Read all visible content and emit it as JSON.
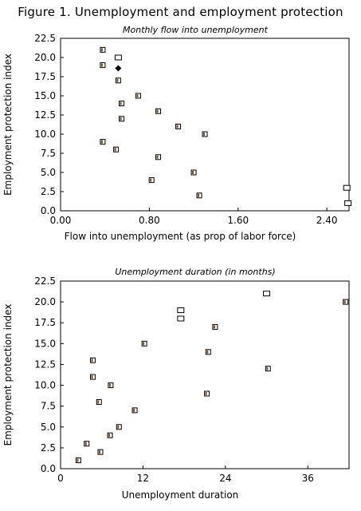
{
  "figure_title": "Figure 1. Unemployment and employment protection",
  "chart_data": [
    {
      "type": "scatter",
      "title": "Monthly flow into unemployment",
      "xlabel": "Flow into unemployment (as prop of labor force)",
      "ylabel": "Employment protection index",
      "xlim": [
        0,
        2.6
      ],
      "ylim": [
        0,
        22.5
      ],
      "xticks": [
        "0.00",
        "0.80",
        "1.60",
        "2.40"
      ],
      "yticks": [
        "0.0",
        "2.5",
        "5.0",
        "7.5",
        "10.0",
        "12.5",
        "15.0",
        "17.5",
        "20.0",
        "22.5"
      ],
      "grid": false,
      "points": [
        {
          "x": 0.38,
          "y": 21,
          "marker": "square-filled"
        },
        {
          "x": 0.52,
          "y": 20,
          "marker": "square-hollow"
        },
        {
          "x": 0.38,
          "y": 19,
          "marker": "square-filled"
        },
        {
          "x": 0.52,
          "y": 18.6,
          "marker": "diamond"
        },
        {
          "x": 0.52,
          "y": 17,
          "marker": "square-filled"
        },
        {
          "x": 0.7,
          "y": 15,
          "marker": "square-filled"
        },
        {
          "x": 0.55,
          "y": 14,
          "marker": "square-filled"
        },
        {
          "x": 0.88,
          "y": 13,
          "marker": "square-filled"
        },
        {
          "x": 0.55,
          "y": 12,
          "marker": "square-filled"
        },
        {
          "x": 1.06,
          "y": 11,
          "marker": "square-filled"
        },
        {
          "x": 1.3,
          "y": 10,
          "marker": "square-filled"
        },
        {
          "x": 0.38,
          "y": 9,
          "marker": "square-filled"
        },
        {
          "x": 0.5,
          "y": 8,
          "marker": "square-filled"
        },
        {
          "x": 0.88,
          "y": 7,
          "marker": "square-filled"
        },
        {
          "x": 1.2,
          "y": 5,
          "marker": "square-filled"
        },
        {
          "x": 0.82,
          "y": 4,
          "marker": "square-filled"
        },
        {
          "x": 1.25,
          "y": 2,
          "marker": "square-filled"
        },
        {
          "x": 2.58,
          "y": 3,
          "marker": "square-hollow"
        },
        {
          "x": 2.59,
          "y": 1,
          "marker": "square-hollow"
        }
      ]
    },
    {
      "type": "scatter",
      "title": "Unemployment duration (in months)",
      "xlabel": "Unemployment duration",
      "ylabel": "Employment protection index",
      "xlim": [
        0,
        42
      ],
      "ylim": [
        0,
        22.5
      ],
      "xticks": [
        "0",
        "12",
        "24",
        "36"
      ],
      "yticks": [
        "0.0",
        "2.5",
        "5.0",
        "7.5",
        "10.0",
        "12.5",
        "15.0",
        "17.5",
        "20.0",
        "22.5"
      ],
      "grid": false,
      "points": [
        {
          "x": 30,
          "y": 21,
          "marker": "square-hollow"
        },
        {
          "x": 41.5,
          "y": 20,
          "marker": "square-filled"
        },
        {
          "x": 17.5,
          "y": 19,
          "marker": "square-hollow"
        },
        {
          "x": 17.5,
          "y": 18,
          "marker": "square-hollow"
        },
        {
          "x": 22.5,
          "y": 17,
          "marker": "square-filled"
        },
        {
          "x": 12.2,
          "y": 15,
          "marker": "square-filled"
        },
        {
          "x": 21.5,
          "y": 14,
          "marker": "square-filled"
        },
        {
          "x": 4.7,
          "y": 13,
          "marker": "square-filled"
        },
        {
          "x": 30.2,
          "y": 12,
          "marker": "square-filled"
        },
        {
          "x": 4.7,
          "y": 11,
          "marker": "square-filled"
        },
        {
          "x": 7.3,
          "y": 10,
          "marker": "square-filled"
        },
        {
          "x": 21.3,
          "y": 9,
          "marker": "square-filled"
        },
        {
          "x": 5.6,
          "y": 8,
          "marker": "square-filled"
        },
        {
          "x": 10.8,
          "y": 7,
          "marker": "square-filled"
        },
        {
          "x": 8.5,
          "y": 5,
          "marker": "square-filled"
        },
        {
          "x": 7.2,
          "y": 4,
          "marker": "square-filled"
        },
        {
          "x": 3.8,
          "y": 3,
          "marker": "square-filled"
        },
        {
          "x": 5.8,
          "y": 2,
          "marker": "square-filled"
        },
        {
          "x": 2.6,
          "y": 1,
          "marker": "square-filled"
        }
      ]
    }
  ]
}
